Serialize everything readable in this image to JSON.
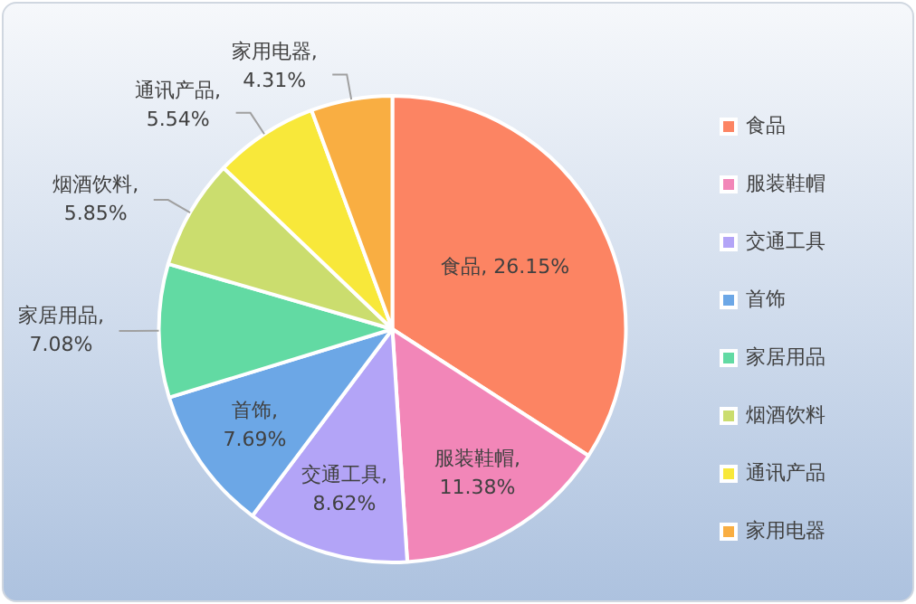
{
  "chart_data": {
    "type": "pie",
    "categories": [
      "食品",
      "服装鞋帽",
      "交通工具",
      "首饰",
      "家居用品",
      "烟酒饮料",
      "通讯产品",
      "家用电器"
    ],
    "values": [
      26.15,
      11.38,
      8.62,
      7.69,
      7.08,
      5.85,
      5.54,
      4.31
    ],
    "value_labels": [
      "食品, 26.15%",
      "服装鞋帽, 11.38%",
      "交通工具, 8.62%",
      "首饰, 7.69%",
      "家居用品, 7.08%",
      "烟酒饮料, 5.85%",
      "通讯产品, 5.54%",
      "家用电器, 4.31%"
    ],
    "colors": [
      "#fc8463",
      "#f286b8",
      "#b3a4f7",
      "#6ca7e6",
      "#62daa3",
      "#cbdd6e",
      "#f8e83a",
      "#f9ae42"
    ],
    "legend": "right"
  }
}
